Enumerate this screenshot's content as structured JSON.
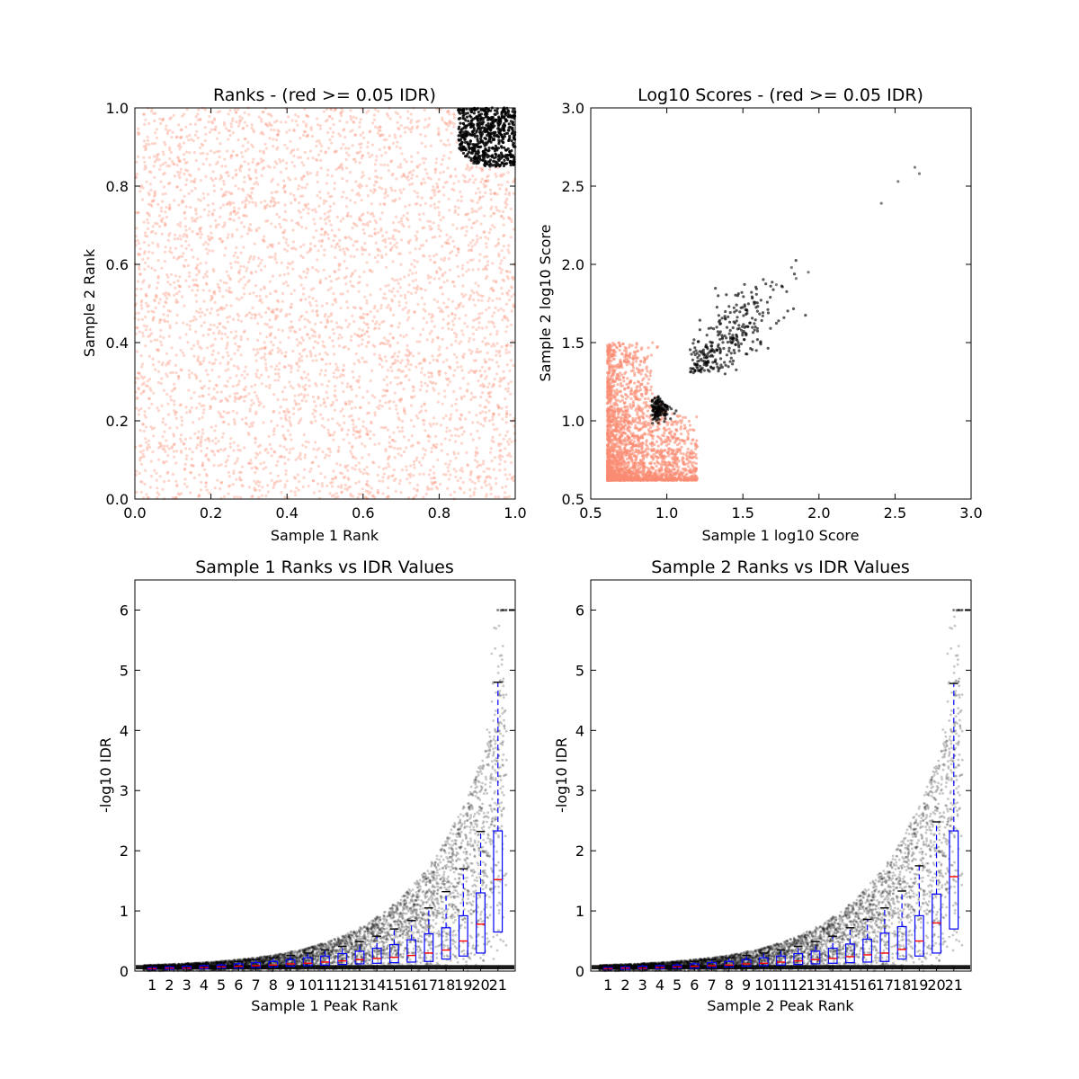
{
  "chart_data": [
    {
      "type": "scatter",
      "title": "Ranks - (red >= 0.05 IDR)",
      "xlabel": "Sample 1 Rank",
      "ylabel": "Sample 2 Rank",
      "xlim": [
        0.0,
        1.0
      ],
      "ylim": [
        0.0,
        1.0
      ],
      "xticks": [
        "0.0",
        "0.2",
        "0.4",
        "0.6",
        "0.8",
        "1.0"
      ],
      "yticks": [
        "0.0",
        "0.2",
        "0.4",
        "0.6",
        "0.8",
        "1.0"
      ],
      "colors": {
        "above": "#fa8c73",
        "below": "#000000"
      },
      "black_region": {
        "x_min": 0.85,
        "y_min": 0.85,
        "radius": 0.18
      },
      "notes": "dense uniform cloud of salmon points; black points only in top-right corner"
    },
    {
      "type": "scatter",
      "title": "Log10 Scores - (red >= 0.05 IDR)",
      "xlabel": "Sample 1 log10 Score",
      "ylabel": "Sample 2 log10 Score",
      "xlim": [
        0.5,
        3.0
      ],
      "ylim": [
        0.5,
        3.0
      ],
      "xticks": [
        "0.5",
        "1.0",
        "1.5",
        "2.0",
        "2.5",
        "3.0"
      ],
      "yticks": [
        "0.5",
        "1.0",
        "1.5",
        "2.0",
        "2.5",
        "3.0"
      ],
      "colors": {
        "above": "#fa8c73",
        "below": "#000000"
      },
      "salmon_cluster": {
        "x": [
          0.61,
          1.2
        ],
        "y": [
          0.62,
          1.5
        ]
      },
      "black_outliers": [
        [
          2.41,
          2.39
        ],
        [
          2.52,
          2.53
        ],
        [
          2.63,
          2.62
        ],
        [
          2.66,
          2.58
        ],
        [
          1.82,
          1.98
        ],
        [
          1.93,
          1.95
        ],
        [
          1.85,
          1.91
        ],
        [
          1.72,
          1.87
        ]
      ]
    },
    {
      "type": "box",
      "title": "Sample 1 Ranks vs IDR Values",
      "xlabel": "Sample 1 Peak Rank",
      "ylabel": "-log10 IDR",
      "ylim": [
        0,
        6.5
      ],
      "yticks": [
        "0",
        "1",
        "2",
        "3",
        "4",
        "5",
        "6"
      ],
      "categories": [
        "1",
        "2",
        "3",
        "4",
        "5",
        "6",
        "7",
        "8",
        "9",
        "10",
        "11",
        "12",
        "13",
        "14",
        "15",
        "16",
        "17",
        "18",
        "19",
        "20",
        "21"
      ],
      "boxes": [
        {
          "q1": 0.03,
          "median": 0.04,
          "q3": 0.06,
          "whisker_low": 0.0,
          "whisker_high": 0.09
        },
        {
          "q1": 0.03,
          "median": 0.05,
          "q3": 0.07,
          "whisker_low": 0.0,
          "whisker_high": 0.1
        },
        {
          "q1": 0.04,
          "median": 0.05,
          "q3": 0.08,
          "whisker_low": 0.0,
          "whisker_high": 0.11
        },
        {
          "q1": 0.04,
          "median": 0.06,
          "q3": 0.09,
          "whisker_low": 0.0,
          "whisker_high": 0.12
        },
        {
          "q1": 0.05,
          "median": 0.07,
          "q3": 0.1,
          "whisker_low": 0.0,
          "whisker_high": 0.14
        },
        {
          "q1": 0.05,
          "median": 0.08,
          "q3": 0.12,
          "whisker_low": 0.0,
          "whisker_high": 0.16
        },
        {
          "q1": 0.06,
          "median": 0.09,
          "q3": 0.14,
          "whisker_low": 0.0,
          "whisker_high": 0.19
        },
        {
          "q1": 0.07,
          "median": 0.1,
          "q3": 0.16,
          "whisker_low": 0.0,
          "whisker_high": 0.22
        },
        {
          "q1": 0.08,
          "median": 0.12,
          "q3": 0.19,
          "whisker_low": 0.0,
          "whisker_high": 0.26
        },
        {
          "q1": 0.09,
          "median": 0.13,
          "q3": 0.22,
          "whisker_low": 0.0,
          "whisker_high": 0.3
        },
        {
          "q1": 0.1,
          "median": 0.15,
          "q3": 0.25,
          "whisker_low": 0.0,
          "whisker_high": 0.35
        },
        {
          "q1": 0.11,
          "median": 0.17,
          "q3": 0.29,
          "whisker_low": 0.0,
          "whisker_high": 0.41
        },
        {
          "q1": 0.12,
          "median": 0.19,
          "q3": 0.33,
          "whisker_low": 0.0,
          "whisker_high": 0.49
        },
        {
          "q1": 0.13,
          "median": 0.21,
          "q3": 0.38,
          "whisker_low": 0.0,
          "whisker_high": 0.58
        },
        {
          "q1": 0.14,
          "median": 0.23,
          "q3": 0.44,
          "whisker_low": 0.0,
          "whisker_high": 0.7
        },
        {
          "q1": 0.15,
          "median": 0.26,
          "q3": 0.52,
          "whisker_low": 0.0,
          "whisker_high": 0.84
        },
        {
          "q1": 0.16,
          "median": 0.3,
          "q3": 0.62,
          "whisker_low": 0.0,
          "whisker_high": 1.05
        },
        {
          "q1": 0.2,
          "median": 0.35,
          "q3": 0.72,
          "whisker_low": 0.0,
          "whisker_high": 1.32
        },
        {
          "q1": 0.25,
          "median": 0.5,
          "q3": 0.92,
          "whisker_low": 0.0,
          "whisker_high": 1.7
        },
        {
          "q1": 0.3,
          "median": 0.78,
          "q3": 1.3,
          "whisker_low": 0.0,
          "whisker_high": 2.32
        },
        {
          "q1": 0.65,
          "median": 1.52,
          "q3": 2.33,
          "whisker_low": 0.0,
          "whisker_high": 4.8
        }
      ],
      "point_max": 6.0
    },
    {
      "type": "box",
      "title": "Sample 2 Ranks vs IDR Values",
      "xlabel": "Sample 2 Peak Rank",
      "ylabel": "-log10 IDR",
      "ylim": [
        0,
        6.5
      ],
      "yticks": [
        "0",
        "1",
        "2",
        "3",
        "4",
        "5",
        "6"
      ],
      "categories": [
        "1",
        "2",
        "3",
        "4",
        "5",
        "6",
        "7",
        "8",
        "9",
        "10",
        "11",
        "12",
        "13",
        "14",
        "15",
        "16",
        "17",
        "18",
        "19",
        "20",
        "21"
      ],
      "boxes": [
        {
          "q1": 0.03,
          "median": 0.04,
          "q3": 0.06,
          "whisker_low": 0.0,
          "whisker_high": 0.09
        },
        {
          "q1": 0.03,
          "median": 0.05,
          "q3": 0.07,
          "whisker_low": 0.0,
          "whisker_high": 0.1
        },
        {
          "q1": 0.04,
          "median": 0.05,
          "q3": 0.08,
          "whisker_low": 0.0,
          "whisker_high": 0.11
        },
        {
          "q1": 0.04,
          "median": 0.06,
          "q3": 0.09,
          "whisker_low": 0.0,
          "whisker_high": 0.12
        },
        {
          "q1": 0.05,
          "median": 0.07,
          "q3": 0.1,
          "whisker_low": 0.0,
          "whisker_high": 0.14
        },
        {
          "q1": 0.05,
          "median": 0.08,
          "q3": 0.12,
          "whisker_low": 0.0,
          "whisker_high": 0.16
        },
        {
          "q1": 0.06,
          "median": 0.09,
          "q3": 0.14,
          "whisker_low": 0.0,
          "whisker_high": 0.19
        },
        {
          "q1": 0.07,
          "median": 0.1,
          "q3": 0.16,
          "whisker_low": 0.0,
          "whisker_high": 0.22
        },
        {
          "q1": 0.08,
          "median": 0.12,
          "q3": 0.19,
          "whisker_low": 0.0,
          "whisker_high": 0.26
        },
        {
          "q1": 0.09,
          "median": 0.13,
          "q3": 0.22,
          "whisker_low": 0.0,
          "whisker_high": 0.3
        },
        {
          "q1": 0.1,
          "median": 0.15,
          "q3": 0.25,
          "whisker_low": 0.0,
          "whisker_high": 0.35
        },
        {
          "q1": 0.11,
          "median": 0.17,
          "q3": 0.29,
          "whisker_low": 0.0,
          "whisker_high": 0.41
        },
        {
          "q1": 0.12,
          "median": 0.19,
          "q3": 0.33,
          "whisker_low": 0.0,
          "whisker_high": 0.49
        },
        {
          "q1": 0.13,
          "median": 0.21,
          "q3": 0.38,
          "whisker_low": 0.0,
          "whisker_high": 0.58
        },
        {
          "q1": 0.14,
          "median": 0.24,
          "q3": 0.45,
          "whisker_low": 0.0,
          "whisker_high": 0.72
        },
        {
          "q1": 0.15,
          "median": 0.27,
          "q3": 0.53,
          "whisker_low": 0.0,
          "whisker_high": 0.86
        },
        {
          "q1": 0.16,
          "median": 0.3,
          "q3": 0.63,
          "whisker_low": 0.0,
          "whisker_high": 1.05
        },
        {
          "q1": 0.2,
          "median": 0.36,
          "q3": 0.74,
          "whisker_low": 0.0,
          "whisker_high": 1.33
        },
        {
          "q1": 0.25,
          "median": 0.5,
          "q3": 0.92,
          "whisker_low": 0.0,
          "whisker_high": 1.75
        },
        {
          "q1": 0.3,
          "median": 0.8,
          "q3": 1.28,
          "whisker_low": 0.0,
          "whisker_high": 2.48
        },
        {
          "q1": 0.7,
          "median": 1.57,
          "q3": 2.33,
          "whisker_low": 0.0,
          "whisker_high": 4.78
        }
      ],
      "point_max": 6.0
    }
  ]
}
